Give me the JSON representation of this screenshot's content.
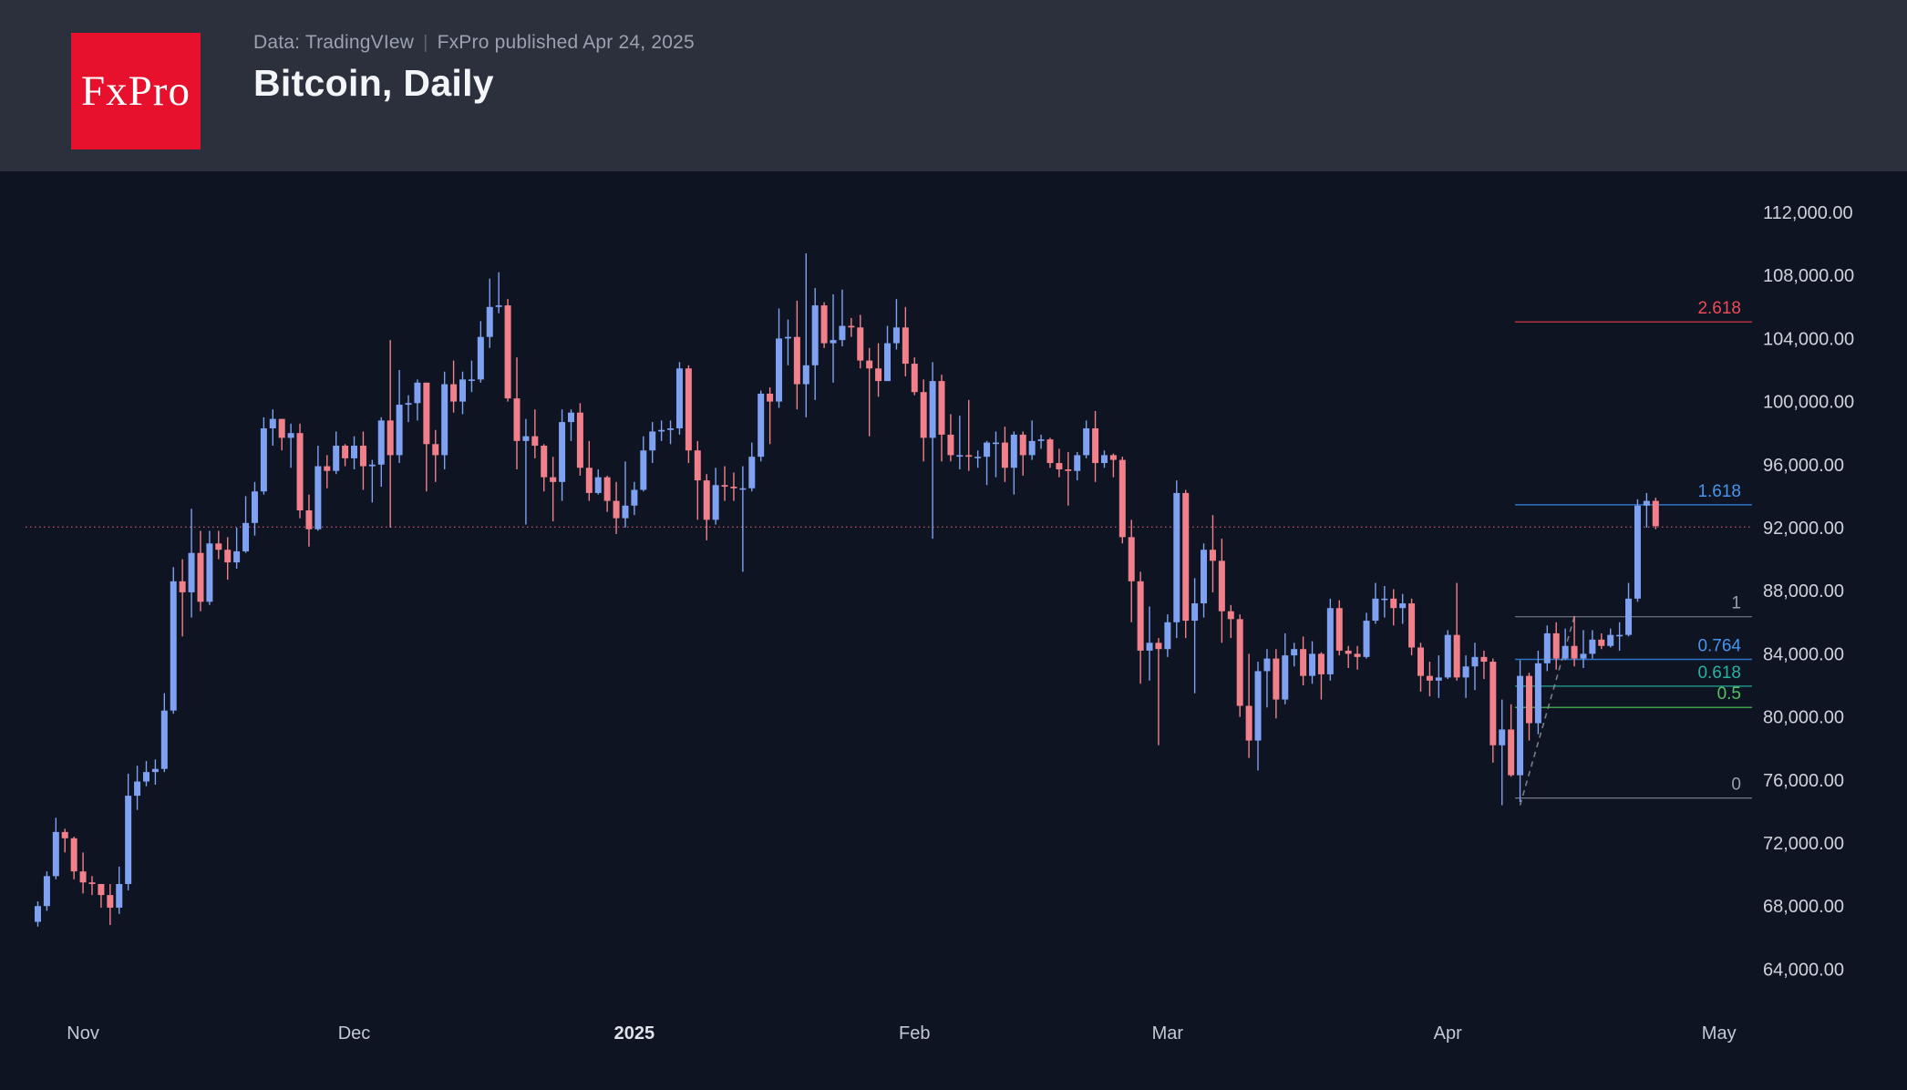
{
  "header": {
    "logo_text": "FxPro",
    "subtitle_data_source": "Data: TradingVIew",
    "subtitle_separator": "|",
    "subtitle_published": "FxPro published Apr 24, 2025",
    "title": "Bitcoin, Daily"
  },
  "colors": {
    "background": "#0e1422",
    "header_bg": "#2b303c",
    "logo_bg": "#e8112d",
    "up_candle": "#7fa1f2",
    "down_candle": "#f1808a",
    "axis_text": "#cdd2db",
    "month_text": "#c3c9d3",
    "year_text": "#dfe3e9",
    "price_line": "#d95c6b",
    "trendline": "#8b929e"
  },
  "chart_data": {
    "type": "candlestick",
    "symbol": "Bitcoin",
    "timeframe": "Daily",
    "start_date": "2024-10-27",
    "units": "USD thousands",
    "y_axis": {
      "min": 64,
      "max": 112,
      "step": 4,
      "tick_format": "#,##0.00"
    },
    "x_axis_labels": [
      {
        "label": "Nov",
        "index": 5
      },
      {
        "label": "Dec",
        "index": 35
      },
      {
        "label": "2025",
        "index": 66
      },
      {
        "label": "Feb",
        "index": 97
      },
      {
        "label": "Mar",
        "index": 125
      },
      {
        "label": "Apr",
        "index": 156
      },
      {
        "label": "May",
        "index": 186
      }
    ],
    "price_line": {
      "price": 92.04
    },
    "trendline": {
      "from_index": 164,
      "from_price": 74.4,
      "to_index": 170,
      "to_price": 86.35
    },
    "fib_levels": [
      {
        "label": "2.618",
        "price": 105.05,
        "line_color": "#b23440",
        "text_color": "#ef4a57"
      },
      {
        "label": "1.618",
        "price": 93.45,
        "line_color": "#2e74c9",
        "text_color": "#4596ef"
      },
      {
        "label": "1",
        "price": 86.35,
        "line_color": "#7f8591",
        "text_color": "#9aa0ac"
      },
      {
        "label": "0.764",
        "price": 83.65,
        "line_color": "#2e74c9",
        "text_color": "#4596ef"
      },
      {
        "label": "0.618",
        "price": 81.95,
        "line_color": "#1e8e82",
        "text_color": "#28b2a2"
      },
      {
        "label": "0.5",
        "price": 80.6,
        "line_color": "#3f9e4a",
        "text_color": "#55c163"
      },
      {
        "label": "0",
        "price": 74.85,
        "line_color": "#7f8591",
        "text_color": "#9aa0ac"
      }
    ],
    "ohlc": [
      [
        67.0,
        68.3,
        66.7,
        68.0
      ],
      [
        68.0,
        70.2,
        67.7,
        69.9
      ],
      [
        69.9,
        73.6,
        69.7,
        72.7
      ],
      [
        72.7,
        72.9,
        71.4,
        72.3
      ],
      [
        72.3,
        72.4,
        69.7,
        70.2
      ],
      [
        70.2,
        71.4,
        68.8,
        69.5
      ],
      [
        69.5,
        69.9,
        68.7,
        69.4
      ],
      [
        69.4,
        69.4,
        67.9,
        68.7
      ],
      [
        68.7,
        69.4,
        66.8,
        67.9
      ],
      [
        67.9,
        70.5,
        67.5,
        69.4
      ],
      [
        69.4,
        76.4,
        69.0,
        75.0
      ],
      [
        75.0,
        76.9,
        74.1,
        75.9
      ],
      [
        75.9,
        77.2,
        75.6,
        76.5
      ],
      [
        76.5,
        77.3,
        75.7,
        76.7
      ],
      [
        76.7,
        81.5,
        76.5,
        80.4
      ],
      [
        80.4,
        89.5,
        80.2,
        88.6
      ],
      [
        88.6,
        90.0,
        85.1,
        87.9
      ],
      [
        87.9,
        93.2,
        86.3,
        90.4
      ],
      [
        90.4,
        91.8,
        86.7,
        87.3
      ],
      [
        87.3,
        91.8,
        87.1,
        91.0
      ],
      [
        91.0,
        91.8,
        90.0,
        90.6
      ],
      [
        90.6,
        91.4,
        88.7,
        89.8
      ],
      [
        89.8,
        92.0,
        89.4,
        90.5
      ],
      [
        90.5,
        94.0,
        90.4,
        92.3
      ],
      [
        92.3,
        94.9,
        91.5,
        94.3
      ],
      [
        94.3,
        99.0,
        94.1,
        98.3
      ],
      [
        98.3,
        99.5,
        97.2,
        98.9
      ],
      [
        98.9,
        98.9,
        96.9,
        97.7
      ],
      [
        97.7,
        98.6,
        95.8,
        98.0
      ],
      [
        98.0,
        98.6,
        92.6,
        93.1
      ],
      [
        93.1,
        94.1,
        90.8,
        91.9
      ],
      [
        91.9,
        97.2,
        91.8,
        95.9
      ],
      [
        95.9,
        96.6,
        94.5,
        95.6
      ],
      [
        95.6,
        98.1,
        95.4,
        97.2
      ],
      [
        97.2,
        97.3,
        95.9,
        96.4
      ],
      [
        96.4,
        97.8,
        95.7,
        97.2
      ],
      [
        97.2,
        98.1,
        94.4,
        95.9
      ],
      [
        95.9,
        96.3,
        93.6,
        96.0
      ],
      [
        96.0,
        99.0,
        94.6,
        98.8
      ],
      [
        98.8,
        103.9,
        92.0,
        96.6
      ],
      [
        96.6,
        102.0,
        96.1,
        99.8
      ],
      [
        99.8,
        100.4,
        98.7,
        99.9
      ],
      [
        99.9,
        101.4,
        98.8,
        101.2
      ],
      [
        101.2,
        101.2,
        94.3,
        97.3
      ],
      [
        97.3,
        98.2,
        94.9,
        96.6
      ],
      [
        96.6,
        101.9,
        95.7,
        101.1
      ],
      [
        101.1,
        102.6,
        99.3,
        100.0
      ],
      [
        100.0,
        101.9,
        99.2,
        101.4
      ],
      [
        101.4,
        102.6,
        100.6,
        101.4
      ],
      [
        101.4,
        105.1,
        101.2,
        104.1
      ],
      [
        104.1,
        107.8,
        103.4,
        106.0
      ],
      [
        106.0,
        108.2,
        105.6,
        106.1
      ],
      [
        106.1,
        106.5,
        100.0,
        100.2
      ],
      [
        100.2,
        102.8,
        95.7,
        97.5
      ],
      [
        97.5,
        98.9,
        92.2,
        97.8
      ],
      [
        97.8,
        99.5,
        96.4,
        97.2
      ],
      [
        97.2,
        97.3,
        94.3,
        95.2
      ],
      [
        95.2,
        96.5,
        92.4,
        94.9
      ],
      [
        94.9,
        99.5,
        93.7,
        98.7
      ],
      [
        98.7,
        99.5,
        97.5,
        99.3
      ],
      [
        99.3,
        99.9,
        95.3,
        95.8
      ],
      [
        95.8,
        97.5,
        93.7,
        94.2
      ],
      [
        94.2,
        95.7,
        94.1,
        95.2
      ],
      [
        95.2,
        95.3,
        93.0,
        93.7
      ],
      [
        93.7,
        94.9,
        91.6,
        92.6
      ],
      [
        92.6,
        96.2,
        92.0,
        93.4
      ],
      [
        93.4,
        94.9,
        92.8,
        94.4
      ],
      [
        94.4,
        97.8,
        94.3,
        96.9
      ],
      [
        96.9,
        98.7,
        96.1,
        98.1
      ],
      [
        98.1,
        98.8,
        97.5,
        98.2
      ],
      [
        98.2,
        98.8,
        97.3,
        98.3
      ],
      [
        98.3,
        102.5,
        97.9,
        102.1
      ],
      [
        102.1,
        102.3,
        96.1,
        96.9
      ],
      [
        96.9,
        97.5,
        92.5,
        95.0
      ],
      [
        95.0,
        95.4,
        91.2,
        92.5
      ],
      [
        92.5,
        95.8,
        92.2,
        94.7
      ],
      [
        94.7,
        95.9,
        93.7,
        94.6
      ],
      [
        94.6,
        95.5,
        93.7,
        94.5
      ],
      [
        94.5,
        95.9,
        89.2,
        94.5
      ],
      [
        94.5,
        97.4,
        94.3,
        96.5
      ],
      [
        96.5,
        100.7,
        96.2,
        100.5
      ],
      [
        100.5,
        100.9,
        97.3,
        100.0
      ],
      [
        100.0,
        105.9,
        99.6,
        104.0
      ],
      [
        104.0,
        105.2,
        102.3,
        104.1
      ],
      [
        104.1,
        106.4,
        99.5,
        101.1
      ],
      [
        101.1,
        109.4,
        99.0,
        102.3
      ],
      [
        102.3,
        107.2,
        100.1,
        106.1
      ],
      [
        106.1,
        106.3,
        103.4,
        103.7
      ],
      [
        103.7,
        106.8,
        101.2,
        103.9
      ],
      [
        103.9,
        107.1,
        103.5,
        104.8
      ],
      [
        104.8,
        105.3,
        104.1,
        104.7
      ],
      [
        104.7,
        105.5,
        102.1,
        102.6
      ],
      [
        102.6,
        103.4,
        97.8,
        102.1
      ],
      [
        102.1,
        103.7,
        100.3,
        101.3
      ],
      [
        101.3,
        104.8,
        101.3,
        103.7
      ],
      [
        103.7,
        106.5,
        103.3,
        104.7
      ],
      [
        104.7,
        106.0,
        101.6,
        102.4
      ],
      [
        102.4,
        102.8,
        100.4,
        100.6
      ],
      [
        100.6,
        101.4,
        96.2,
        97.7
      ],
      [
        97.7,
        102.5,
        91.3,
        101.3
      ],
      [
        101.3,
        101.7,
        96.2,
        97.9
      ],
      [
        97.9,
        99.2,
        96.2,
        96.6
      ],
      [
        96.6,
        99.1,
        95.7,
        96.6
      ],
      [
        96.6,
        100.1,
        95.6,
        96.5
      ],
      [
        96.5,
        96.9,
        95.8,
        96.5
      ],
      [
        96.5,
        97.5,
        94.7,
        97.4
      ],
      [
        97.4,
        98.1,
        95.2,
        97.4
      ],
      [
        97.4,
        98.4,
        94.9,
        95.8
      ],
      [
        95.8,
        98.1,
        94.1,
        97.9
      ],
      [
        97.9,
        98.1,
        95.3,
        96.6
      ],
      [
        96.6,
        98.8,
        96.3,
        97.5
      ],
      [
        97.5,
        97.9,
        97.0,
        97.6
      ],
      [
        97.6,
        97.7,
        95.8,
        96.1
      ],
      [
        96.1,
        97.0,
        95.2,
        95.7
      ],
      [
        95.7,
        96.8,
        93.4,
        95.6
      ],
      [
        95.6,
        96.8,
        95.0,
        96.6
      ],
      [
        96.6,
        98.8,
        96.4,
        98.3
      ],
      [
        98.3,
        99.4,
        94.9,
        96.1
      ],
      [
        96.1,
        96.9,
        95.8,
        96.6
      ],
      [
        96.6,
        96.7,
        95.2,
        96.3
      ],
      [
        96.3,
        96.5,
        91.0,
        91.4
      ],
      [
        91.4,
        92.5,
        86.0,
        88.6
      ],
      [
        88.6,
        89.2,
        82.1,
        84.2
      ],
      [
        84.2,
        87.0,
        82.3,
        84.7
      ],
      [
        84.7,
        85.0,
        78.2,
        84.3
      ],
      [
        84.3,
        86.5,
        83.8,
        86.0
      ],
      [
        86.0,
        95.0,
        85.0,
        94.2
      ],
      [
        94.2,
        94.4,
        85.0,
        86.1
      ],
      [
        86.1,
        88.8,
        81.5,
        87.2
      ],
      [
        87.2,
        91.0,
        86.3,
        90.6
      ],
      [
        90.6,
        92.8,
        87.9,
        89.9
      ],
      [
        89.9,
        91.3,
        84.7,
        86.7
      ],
      [
        86.7,
        87.1,
        85.0,
        86.2
      ],
      [
        86.2,
        86.5,
        80.0,
        80.7
      ],
      [
        80.7,
        84.0,
        77.4,
        78.5
      ],
      [
        78.5,
        83.5,
        76.6,
        82.9
      ],
      [
        82.9,
        84.3,
        80.6,
        83.7
      ],
      [
        83.7,
        84.3,
        79.9,
        81.1
      ],
      [
        81.1,
        85.3,
        80.8,
        83.9
      ],
      [
        83.9,
        84.7,
        83.2,
        84.3
      ],
      [
        84.3,
        85.1,
        82.0,
        82.6
      ],
      [
        82.6,
        84.8,
        82.1,
        84.0
      ],
      [
        84.0,
        84.1,
        81.1,
        82.7
      ],
      [
        82.7,
        87.5,
        82.3,
        86.9
      ],
      [
        86.9,
        87.4,
        83.9,
        84.2
      ],
      [
        84.2,
        84.5,
        83.1,
        84.0
      ],
      [
        84.0,
        84.5,
        83.0,
        83.8
      ],
      [
        83.8,
        86.6,
        83.7,
        86.1
      ],
      [
        86.1,
        88.5,
        85.9,
        87.5
      ],
      [
        87.5,
        88.3,
        86.3,
        87.5
      ],
      [
        87.5,
        88.1,
        85.8,
        86.9
      ],
      [
        86.9,
        87.8,
        85.9,
        87.2
      ],
      [
        87.2,
        87.5,
        83.9,
        84.4
      ],
      [
        84.4,
        84.7,
        81.6,
        82.6
      ],
      [
        82.6,
        83.5,
        81.3,
        82.3
      ],
      [
        82.3,
        83.9,
        81.2,
        82.5
      ],
      [
        82.5,
        85.5,
        82.4,
        85.2
      ],
      [
        85.2,
        88.5,
        82.3,
        82.5
      ],
      [
        82.5,
        83.9,
        81.2,
        83.2
      ],
      [
        83.2,
        84.7,
        81.7,
        83.8
      ],
      [
        83.8,
        84.2,
        82.4,
        83.5
      ],
      [
        83.5,
        83.7,
        77.1,
        78.2
      ],
      [
        78.2,
        81.1,
        74.4,
        79.2
      ],
      [
        79.2,
        80.8,
        76.2,
        76.3
      ],
      [
        76.3,
        83.6,
        74.6,
        82.6
      ],
      [
        82.6,
        82.8,
        78.5,
        79.6
      ],
      [
        79.6,
        84.2,
        78.9,
        83.4
      ],
      [
        83.4,
        85.8,
        82.9,
        85.3
      ],
      [
        85.3,
        86.0,
        83.0,
        83.7
      ],
      [
        83.7,
        85.6,
        83.6,
        84.5
      ],
      [
        84.5,
        86.4,
        83.2,
        83.7
      ],
      [
        83.7,
        85.5,
        83.1,
        84.0
      ],
      [
        84.0,
        85.5,
        83.7,
        84.9
      ],
      [
        84.9,
        85.3,
        84.3,
        84.5
      ],
      [
        84.5,
        85.6,
        84.4,
        85.2
      ],
      [
        85.2,
        86.0,
        84.2,
        85.2
      ],
      [
        85.2,
        88.5,
        85.1,
        87.5
      ],
      [
        87.5,
        93.8,
        87.3,
        93.4
      ],
      [
        93.4,
        94.2,
        92.0,
        93.7
      ],
      [
        93.7,
        93.9,
        91.9,
        92.1
      ]
    ]
  }
}
